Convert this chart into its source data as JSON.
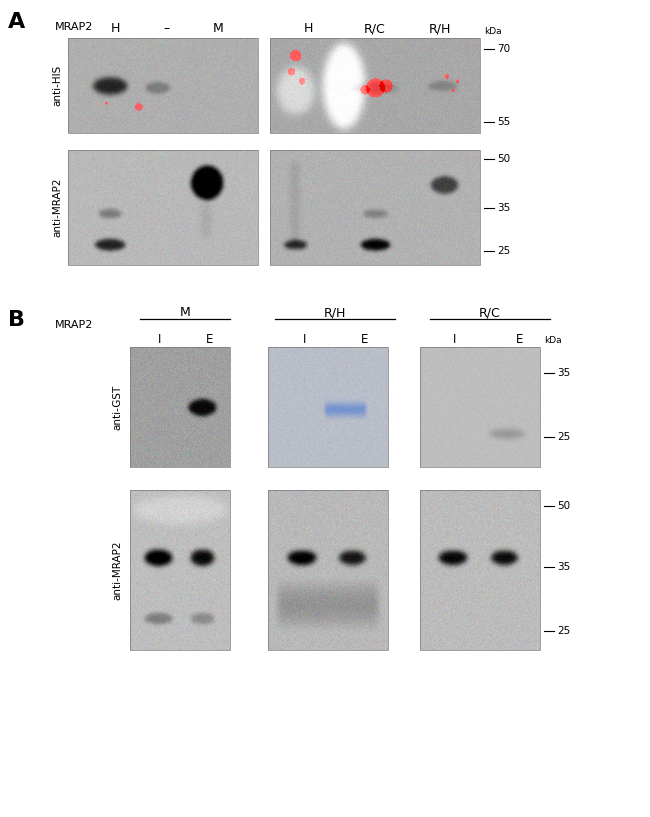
{
  "figure_width": 6.5,
  "figure_height": 8.17,
  "bg_color": "#ffffff",
  "panel_A": {
    "label": "A",
    "blot1_label": "anti-HIS",
    "blot2_label": "anti-MRAP2",
    "mrap2_label": "MRAP2",
    "col_labels_left": [
      "H",
      "–",
      "M"
    ],
    "col_labels_right": [
      "H",
      "R/C",
      "R/H"
    ],
    "kda_blot1": [
      [
        "70",
        0.85
      ],
      [
        "55",
        0.12
      ]
    ],
    "kda_blot2": [
      [
        "50",
        0.88
      ],
      [
        "35",
        0.45
      ],
      [
        "25",
        0.06
      ]
    ]
  },
  "panel_B": {
    "label": "B",
    "blot1_label": "anti-GST",
    "blot2_label": "anti-MRAP2",
    "mrap2_label": "MRAP2",
    "group_labels": [
      "M",
      "R/H",
      "R/C"
    ],
    "col_labels": [
      "I",
      "E",
      "I",
      "E",
      "I",
      "E"
    ],
    "kda_blot1": [
      [
        "35",
        0.72
      ],
      [
        "25",
        0.18
      ]
    ],
    "kda_blot2": [
      [
        "50",
        0.88
      ],
      [
        "35",
        0.5
      ],
      [
        "25",
        0.06
      ]
    ]
  }
}
